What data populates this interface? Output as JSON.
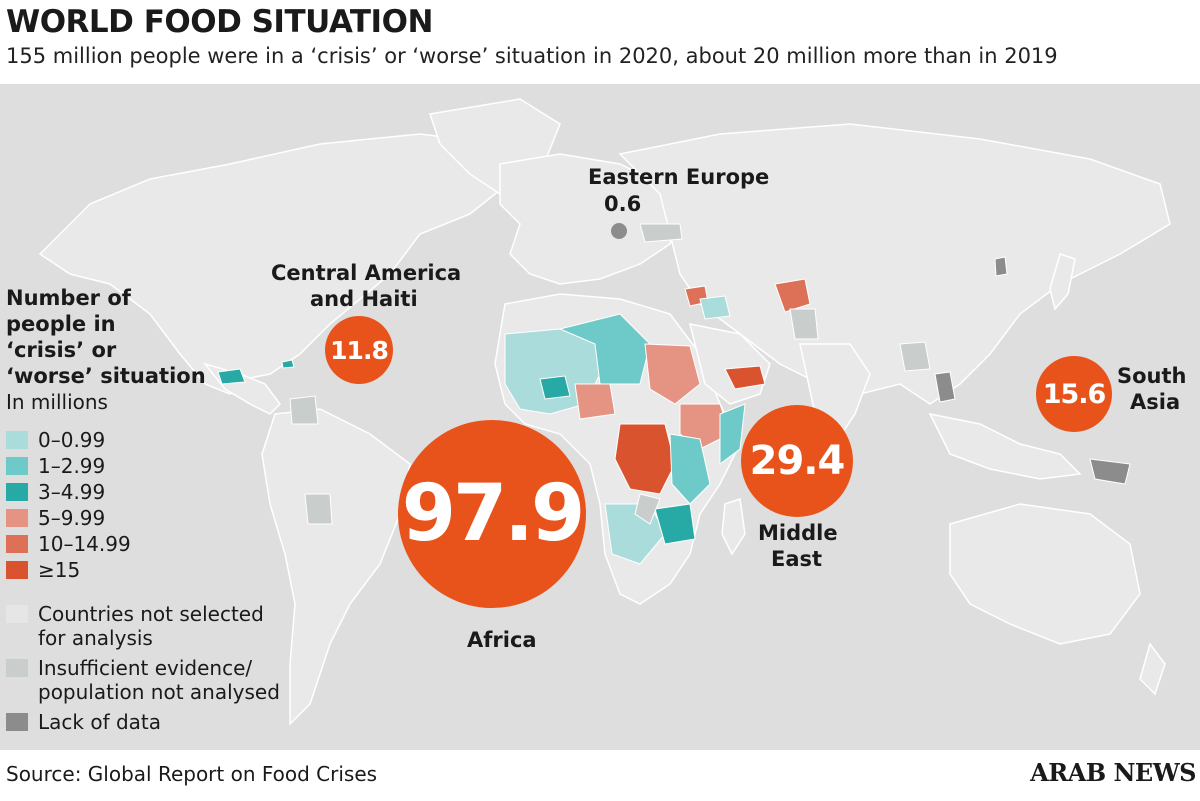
{
  "header": {
    "title": "WORLD FOOD SITUATION",
    "subtitle": "155 million people were in a ‘crisis’ or ‘worse’ situation in 2020, about 20 million more than in 2019"
  },
  "regions": [
    {
      "id": "central-america",
      "name": "Central America and Haiti",
      "name_lines": [
        "Central America",
        "and Haiti"
      ],
      "value": "11.8"
    },
    {
      "id": "africa",
      "name": "Africa",
      "value": "97.9"
    },
    {
      "id": "middle-east",
      "name": "Middle East",
      "name_lines": [
        "Middle",
        "East"
      ],
      "value": "29.4"
    },
    {
      "id": "south-asia",
      "name": "South Asia",
      "name_lines": [
        "South",
        "Asia"
      ],
      "value": "15.6"
    },
    {
      "id": "eastern-europe",
      "name": "Eastern Europe",
      "value": "0.6"
    }
  ],
  "legend": {
    "title_lines": [
      "Number of",
      "people in",
      "‘crisis’ or",
      "‘worse’ situation"
    ],
    "unit": "In millions",
    "scale": [
      {
        "label": "0–0.99",
        "color": "#a9dcdb"
      },
      {
        "label": "1–2.99",
        "color": "#6ecac8"
      },
      {
        "label": "3–4.99",
        "color": "#27aaa5"
      },
      {
        "label": "5–9.99",
        "color": "#e59484"
      },
      {
        "label": "10–14.99",
        "color": "#dd7158"
      },
      {
        "label": "≥15",
        "color": "#d9532f"
      }
    ],
    "other": [
      {
        "label_lines": [
          "Countries not selected",
          "for analysis"
        ],
        "color": "#e6e6e6"
      },
      {
        "label_lines": [
          "Insufficient evidence/",
          "population not analysed"
        ],
        "color": "#c9cecd"
      },
      {
        "label_lines": [
          "Lack of data"
        ],
        "color": "#8c8c8c"
      }
    ]
  },
  "footer": {
    "source": "Source: Global Report on Food Crises",
    "brand": "ARAB NEWS"
  },
  "colors": {
    "bubble": "#e8531c",
    "land": "#e9e9e9",
    "ocean": "#dedede"
  }
}
